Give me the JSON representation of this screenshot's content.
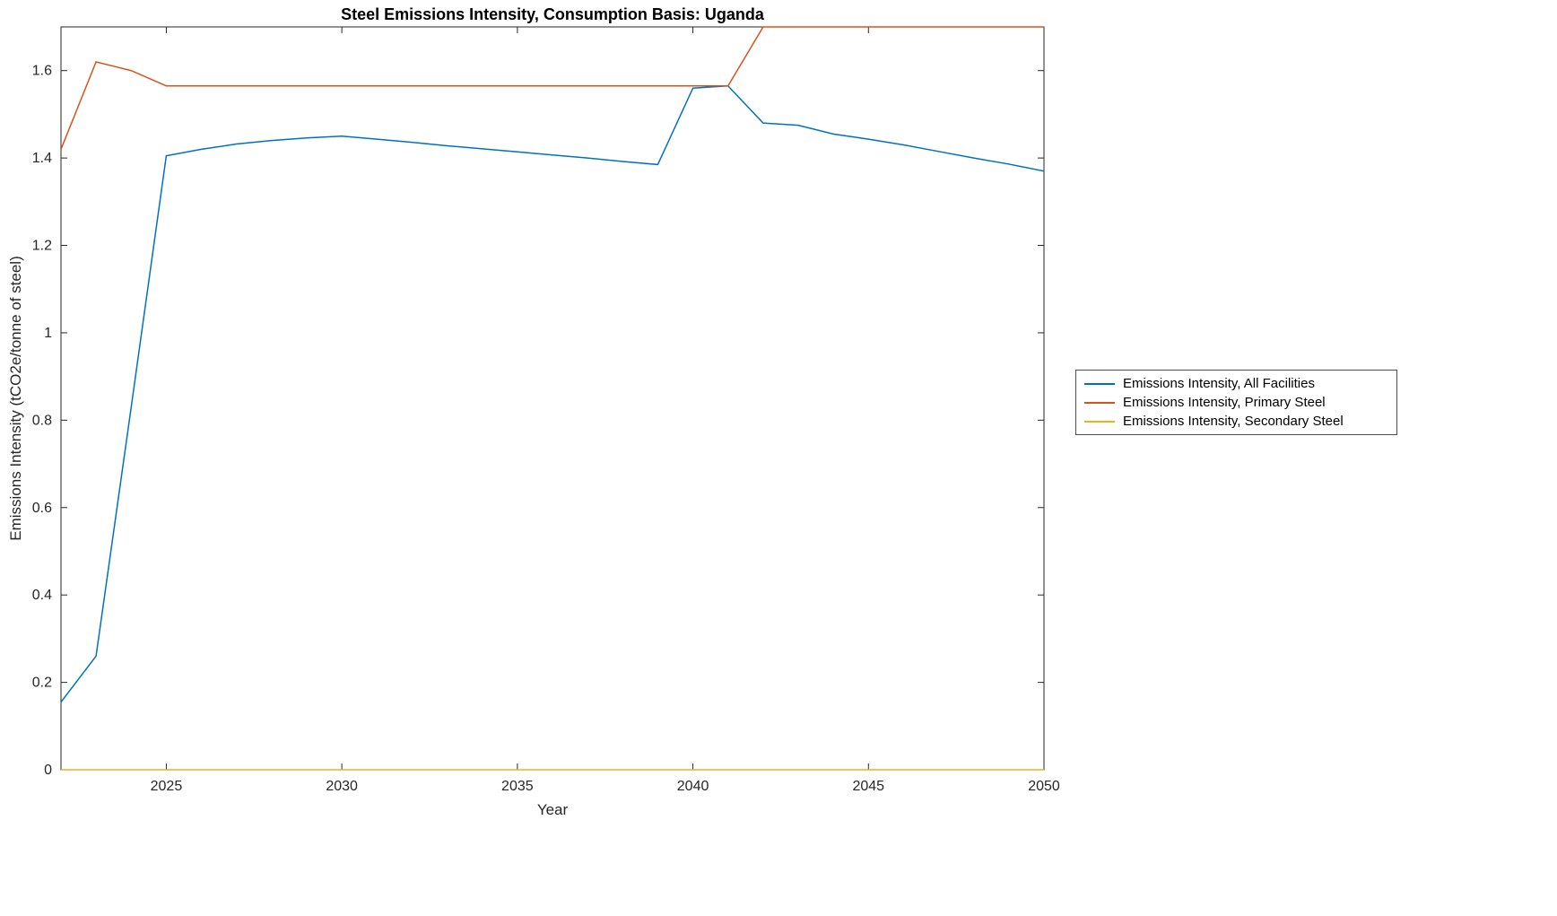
{
  "chart_data": {
    "type": "line",
    "title": "Steel Emissions Intensity, Consumption Basis: Uganda",
    "xlabel": "Year",
    "ylabel": "Emissions Intensity (tCO2e/tonne of steel)",
    "xlim": [
      2022,
      2050
    ],
    "ylim": [
      0,
      1.7
    ],
    "xticks": [
      2025,
      2030,
      2035,
      2040,
      2045,
      2050
    ],
    "yticks": [
      "0",
      "0.2",
      "0.4",
      "0.6",
      "0.8",
      "1",
      "1.2",
      "1.4",
      "1.6"
    ],
    "grid": false,
    "axis_color": "#262626",
    "legend_position": "right-outside",
    "x": [
      2022,
      2023,
      2024,
      2025,
      2026,
      2027,
      2028,
      2029,
      2030,
      2031,
      2032,
      2033,
      2034,
      2035,
      2036,
      2037,
      2038,
      2039,
      2040,
      2041,
      2042,
      2043,
      2044,
      2045,
      2046,
      2047,
      2048,
      2049,
      2050
    ],
    "series": [
      {
        "name": "Emissions Intensity, All Facilities",
        "color": "#0072BD",
        "values": [
          0.155,
          0.26,
          0.83,
          1.405,
          1.42,
          1.432,
          1.44,
          1.446,
          1.45,
          1.443,
          1.436,
          1.428,
          1.421,
          1.414,
          1.407,
          1.4,
          1.392,
          1.385,
          1.56,
          1.565,
          1.48,
          1.475,
          1.455,
          1.443,
          1.43,
          1.415,
          1.4,
          1.386,
          1.37
        ]
      },
      {
        "name": "Emissions Intensity, Primary Steel",
        "color": "#D95319",
        "values": [
          1.42,
          1.62,
          1.6,
          1.565,
          1.565,
          1.565,
          1.565,
          1.565,
          1.565,
          1.565,
          1.565,
          1.565,
          1.565,
          1.565,
          1.565,
          1.565,
          1.565,
          1.565,
          1.565,
          1.565,
          1.7,
          1.7,
          1.7,
          1.7,
          1.7,
          1.7,
          1.7,
          1.7,
          1.7
        ]
      },
      {
        "name": "Emissions Intensity, Secondary Steel",
        "color": "#EDB120",
        "values": [
          0,
          0,
          0,
          0,
          0,
          0,
          0,
          0,
          0,
          0,
          0,
          0,
          0,
          0,
          0,
          0,
          0,
          0,
          0,
          0,
          0,
          0,
          0,
          0,
          0,
          0,
          0,
          0,
          0
        ]
      }
    ]
  }
}
